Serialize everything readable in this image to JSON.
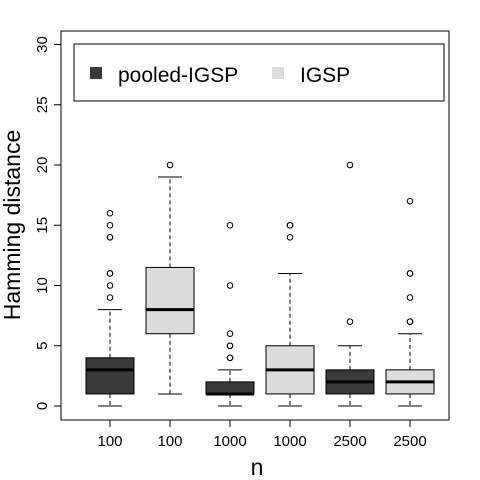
{
  "chart_data": {
    "type": "boxplot",
    "xlabel": "n",
    "ylabel": "Hamming distance",
    "ylim": [
      -1,
      31
    ],
    "yticks": [
      0,
      5,
      10,
      15,
      20,
      25,
      30
    ],
    "categories": [
      "100",
      "100",
      "1000",
      "1000",
      "2500",
      "2500"
    ],
    "legend": {
      "placement": "top",
      "entries": [
        {
          "name": "pooled-IGSP",
          "color": "#3a3a3a"
        },
        {
          "name": "IGSP",
          "color": "#dcdcdc"
        }
      ]
    },
    "boxes": [
      {
        "category": "100",
        "series": "pooled-IGSP",
        "color": "#3a3a3a",
        "whisker_low": 0,
        "q1": 1,
        "median": 3,
        "q3": 4,
        "whisker_high": 8,
        "outliers": [
          9,
          10,
          11,
          11,
          14,
          14,
          15,
          16
        ]
      },
      {
        "category": "100",
        "series": "IGSP",
        "color": "#dcdcdc",
        "whisker_low": 1,
        "q1": 6,
        "median": 8,
        "q3": 11.5,
        "whisker_high": 19,
        "outliers": [
          20
        ]
      },
      {
        "category": "1000",
        "series": "pooled-IGSP",
        "color": "#3a3a3a",
        "whisker_low": 0,
        "q1": 1,
        "median": 1,
        "q3": 2,
        "whisker_high": 3,
        "outliers": [
          4,
          4,
          5,
          5,
          6,
          10,
          15
        ]
      },
      {
        "category": "1000",
        "series": "IGSP",
        "color": "#dcdcdc",
        "whisker_low": 0,
        "q1": 1,
        "median": 3,
        "q3": 5,
        "whisker_high": 11,
        "outliers": [
          14,
          15,
          15
        ]
      },
      {
        "category": "2500",
        "series": "pooled-IGSP",
        "color": "#3a3a3a",
        "whisker_low": 0,
        "q1": 1,
        "median": 2,
        "q3": 3,
        "whisker_high": 5,
        "outliers": [
          7,
          20
        ]
      },
      {
        "category": "2500",
        "series": "IGSP",
        "color": "#dcdcdc",
        "whisker_low": 0,
        "q1": 1,
        "median": 2,
        "q3": 3,
        "whisker_high": 6,
        "outliers": [
          7,
          7,
          9,
          11,
          11,
          17
        ]
      }
    ]
  }
}
